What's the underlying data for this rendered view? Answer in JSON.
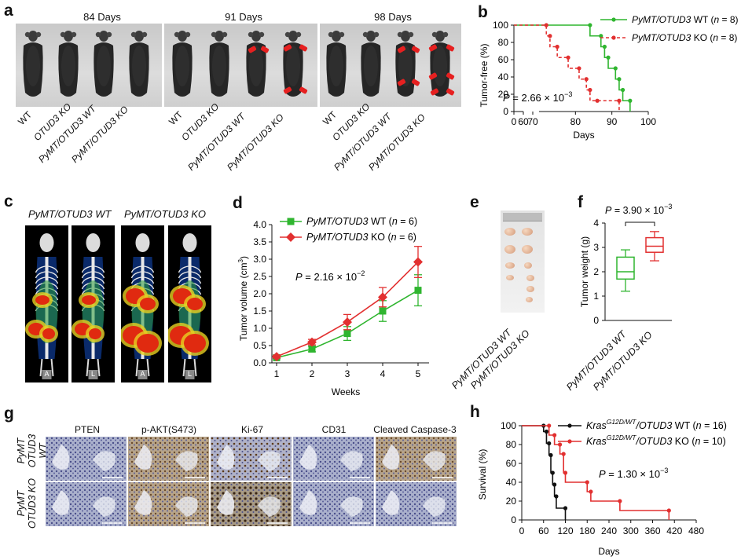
{
  "panel_labels": {
    "a": "a",
    "b": "b",
    "c": "c",
    "d": "d",
    "e": "e",
    "f": "f",
    "g": "g",
    "h": "h"
  },
  "panel_a": {
    "days": [
      "84 Days",
      "91 Days",
      "98 Days"
    ],
    "genotypes": [
      "WT",
      "OTUD3 KO",
      "PyMT/OTUD3 WT",
      "PyMT/OTUD3 KO"
    ]
  },
  "panel_b": {
    "chart_data": {
      "type": "line",
      "title": "",
      "xlabel": "Days",
      "ylabel": "Tumor-free (%)",
      "x_ticks": [
        "0",
        "60",
        "70",
        "80",
        "90",
        "100"
      ],
      "y_ticks": [
        "0",
        "20",
        "40",
        "60",
        "80",
        "100"
      ],
      "series": [
        {
          "name": "PyMT/OTUD3 WT (n = 8)",
          "color": "#2fb52f",
          "x": [
            0,
            84,
            84,
            87,
            87,
            88,
            88,
            89,
            89,
            91,
            91,
            92,
            92,
            93,
            93,
            95,
            95
          ],
          "y": [
            100,
            100,
            87.5,
            87.5,
            75,
            75,
            62.5,
            62.5,
            50,
            50,
            37.5,
            37.5,
            25,
            25,
            12.5,
            12.5,
            0
          ]
        },
        {
          "name": "PyMT/OTUD3 KO (n = 8)",
          "color": "#e23030",
          "x": [
            0,
            72,
            72,
            73,
            73,
            75,
            75,
            78,
            78,
            81,
            81,
            83,
            83,
            84,
            84,
            86,
            86,
            92,
            92
          ],
          "y": [
            100,
            100,
            87.5,
            87.5,
            75,
            75,
            62.5,
            62.5,
            50,
            50,
            37.5,
            37.5,
            25,
            25,
            12.5,
            12.5,
            12.5,
            12.5,
            0
          ]
        }
      ],
      "annotation": "P = 2.66 × 10⁻³"
    },
    "legend": [
      {
        "gene": "PyMT/OTUD3",
        "suffix": "WT (",
        "n": "n",
        "rest": " = 8)"
      },
      {
        "gene": "PyMT/OTUD3",
        "suffix": "KO (",
        "n": "n",
        "rest": " = 8)"
      }
    ],
    "p_prefix": "P",
    "p_value": " = 2.66 × 10",
    "p_exp": "−3"
  },
  "panel_c": {
    "labels": [
      "PyMT/OTUD3 WT",
      "PyMT/OTUD3 KO"
    ],
    "view_marks": [
      "A",
      "L",
      "A",
      "L"
    ]
  },
  "panel_d": {
    "chart_data": {
      "type": "line",
      "xlabel": "Weeks",
      "ylabel": "Tumor volume (cm³)",
      "x": [
        1,
        2,
        3,
        4,
        5
      ],
      "y_ticks": [
        "0.0",
        "0.5",
        "1.0",
        "1.5",
        "2.0",
        "2.5",
        "3.0",
        "3.5",
        "4.0"
      ],
      "ylim": [
        0,
        4
      ],
      "series": [
        {
          "name": "PyMT/OTUD3 WT (n = 6)",
          "color": "#2fb52f",
          "values": [
            0.15,
            0.4,
            0.85,
            1.5,
            2.1
          ],
          "err": [
            0.03,
            0.08,
            0.2,
            0.3,
            0.45
          ]
        },
        {
          "name": "PyMT/OTUD3 KO (n = 6)",
          "color": "#e23030",
          "values": [
            0.18,
            0.6,
            1.18,
            1.9,
            2.92
          ],
          "err": [
            0.04,
            0.08,
            0.22,
            0.28,
            0.45
          ]
        }
      ],
      "annotation": "P = 2.16 × 10⁻²"
    },
    "legend": [
      {
        "gene": "PyMT/OTUD3",
        "suffix": " WT (",
        "n": "n",
        "rest": " = 6)"
      },
      {
        "gene": "PyMT/OTUD3",
        "suffix": " KO (",
        "n": "n",
        "rest": " = 6)"
      }
    ],
    "ylabel_main": "Tumor volume (cm",
    "ylabel_sup": "3",
    "ylabel_end": ")",
    "p_prefix": "P",
    "p_value": " = 2.16 × 10",
    "p_exp": "−2"
  },
  "panel_e": {
    "labels": [
      "PyMT/OTUD3 WT",
      "PyMT/OTUD3 KO"
    ]
  },
  "panel_f": {
    "chart_data": {
      "type": "box",
      "ylabel": "Tumor weight (g)",
      "y_ticks": [
        "0",
        "1",
        "2",
        "3",
        "4"
      ],
      "ylim": [
        0,
        4
      ],
      "boxes": [
        {
          "name": "PyMT/OTUD3 WT",
          "color": "#2fb52f",
          "min": 1.2,
          "q1": 1.7,
          "median": 2.0,
          "q3": 2.6,
          "max": 2.9
        },
        {
          "name": "PyMT/OTUD3 KO",
          "color": "#e23030",
          "min": 2.45,
          "q1": 2.8,
          "median": 3.05,
          "q3": 3.4,
          "max": 3.65
        }
      ],
      "annotation": "P = 3.90 × 10⁻³"
    },
    "p_prefix": "P",
    "p_value": " = 3.90 × 10",
    "p_exp": "−3",
    "labels": [
      "PyMT/OTUD3 WT",
      "PyMT/OTUD3 KO"
    ]
  },
  "panel_g": {
    "markers": [
      "PTEN",
      "p-AKT(S473)",
      "Ki-67",
      "CD31",
      "Cleaved Caspase-3"
    ],
    "rows": [
      "PyMT OTUD3 WT",
      "PyMT OTUD3 KO"
    ],
    "row1_a": "PyMT",
    "row1_b": "OTUD3 WT",
    "row2_a": "PyMT",
    "row2_b": "OTUD3 KO"
  },
  "panel_h": {
    "chart_data": {
      "type": "line",
      "xlabel": "Days",
      "ylabel": "Survival (%)",
      "x_ticks": [
        "0",
        "60",
        "120",
        "180",
        "240",
        "300",
        "360",
        "420",
        "480"
      ],
      "y_ticks": [
        "0",
        "20",
        "40",
        "60",
        "80",
        "100"
      ],
      "series": [
        {
          "name": "KrasG12D/WT/OTUD3 WT (n = 16)",
          "color": "#111111",
          "x": [
            0,
            60,
            60,
            68,
            68,
            75,
            75,
            80,
            80,
            85,
            85,
            90,
            90,
            95,
            95,
            120,
            120
          ],
          "y": [
            100,
            100,
            93.75,
            93.75,
            81.25,
            81.25,
            68.75,
            68.75,
            50,
            50,
            37.5,
            37.5,
            25,
            25,
            12.5,
            12.5,
            0
          ]
        },
        {
          "name": "KrasG12D/WT/OTUD3 KO (n = 10)",
          "color": "#e23030",
          "x": [
            0,
            75,
            75,
            90,
            90,
            105,
            105,
            115,
            115,
            120,
            120,
            180,
            180,
            190,
            190,
            270,
            270,
            405,
            405
          ],
          "y": [
            100,
            100,
            90,
            90,
            80,
            80,
            70,
            70,
            50,
            50,
            40,
            40,
            30,
            30,
            20,
            20,
            10,
            10,
            0
          ]
        }
      ],
      "annotation": "P = 1.30 × 10⁻³"
    },
    "legend": [
      {
        "gene": "Kras",
        "sup": "G12D/WT",
        "mid": "/OTUD3",
        "suffix": " WT (",
        "n": "n",
        "rest": " = 16)"
      },
      {
        "gene": "Kras",
        "sup": "G12D/WT",
        "mid": "/OTUD3",
        "suffix": " KO (",
        "n": "n",
        "rest": " = 10)"
      }
    ],
    "p_prefix": "P",
    "p_value": " = 1.30 × 10",
    "p_exp": "−3"
  },
  "colors": {
    "wt": "#2fb52f",
    "ko": "#e23030",
    "black": "#111111",
    "tumor_arrow": "#e62020"
  }
}
